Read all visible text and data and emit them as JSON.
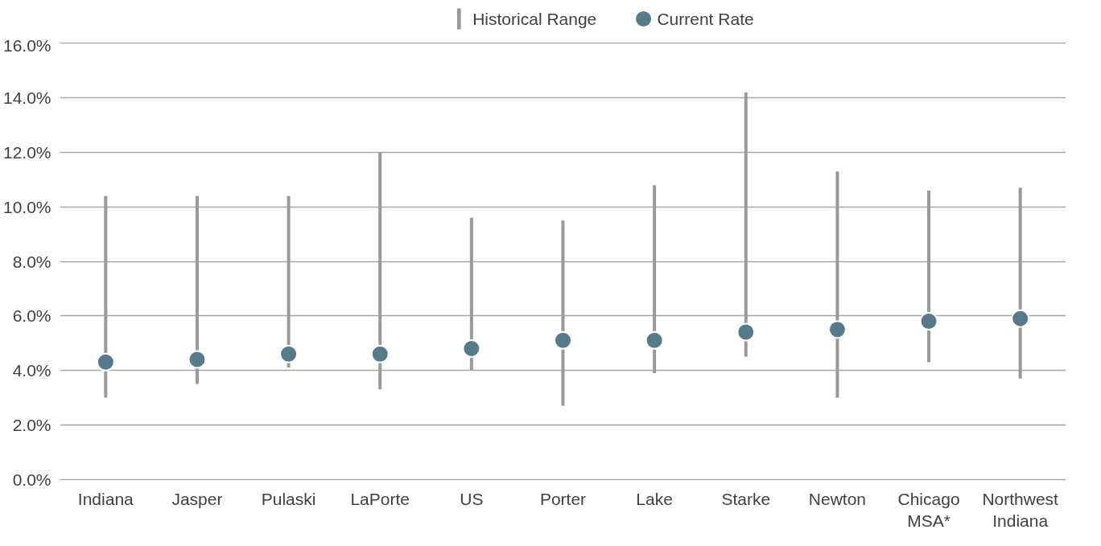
{
  "chart_data": {
    "type": "bar",
    "categories": [
      "Indiana",
      "Jasper",
      "Pulaski",
      "LaPorte",
      "US",
      "Porter",
      "Lake",
      "Starke",
      "Newton",
      "Chicago MSA*",
      "Northwest Indiana"
    ],
    "series": [
      {
        "name": "Historical Range",
        "color": "#999999",
        "base": [
          3.0,
          3.5,
          4.1,
          3.3,
          4.0,
          2.7,
          3.9,
          4.5,
          3.0,
          4.3,
          3.7
        ],
        "values": [
          7.4,
          6.9,
          6.3,
          8.7,
          5.6,
          6.8,
          6.9,
          9.7,
          8.3,
          6.3,
          7.0
        ]
      },
      {
        "name": "Current Rate",
        "type": "scatter",
        "color": "#557a8c",
        "marker": "circle",
        "values": [
          4.3,
          4.4,
          4.6,
          4.6,
          4.8,
          5.1,
          5.1,
          5.4,
          5.5,
          5.8,
          5.9
        ]
      }
    ],
    "ylim": [
      0,
      16
    ],
    "yticks": [
      {
        "value": 0,
        "label": "0.0%"
      },
      {
        "value": 2,
        "label": "2.0%"
      },
      {
        "value": 4,
        "label": "4.0%"
      },
      {
        "value": 6,
        "label": "6.0%"
      },
      {
        "value": 8,
        "label": "8.0%"
      },
      {
        "value": 10,
        "label": "10.0%"
      },
      {
        "value": 12,
        "label": "12.0%"
      },
      {
        "value": 14,
        "label": "14.0%"
      },
      {
        "value": 16,
        "label": "16.0%"
      }
    ],
    "grid": "y",
    "legend": "top"
  }
}
